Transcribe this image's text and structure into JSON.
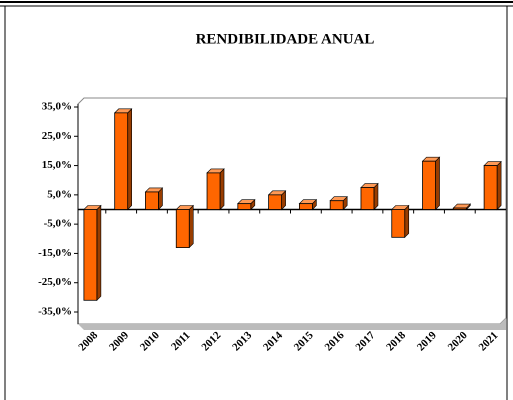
{
  "chart_data": {
    "type": "bar",
    "title": "RENDIBILIDADE ANUAL",
    "categories": [
      "2008",
      "2009",
      "2010",
      "2011",
      "2012",
      "2013",
      "2014",
      "2015",
      "2016",
      "2017",
      "2018",
      "2019",
      "2020",
      "2021"
    ],
    "values": [
      -31,
      33,
      6,
      -13,
      12.5,
      2,
      5,
      2,
      3,
      7.5,
      -9.5,
      16.5,
      0.5,
      15
    ],
    "color": "#ff6600",
    "ylim": [
      -35,
      35
    ],
    "yticks": [
      {
        "value": 35,
        "label": "35,0%"
      },
      {
        "value": 25,
        "label": "25,0%"
      },
      {
        "value": 15,
        "label": "15,0%"
      },
      {
        "value": 5,
        "label": "5,0%"
      },
      {
        "value": -5,
        "label": "-5,0%"
      },
      {
        "value": -15,
        "label": "-15,0%"
      },
      {
        "value": -25,
        "label": "-25,0%"
      },
      {
        "value": -35,
        "label": "-35,0%"
      }
    ],
    "grid": false
  }
}
